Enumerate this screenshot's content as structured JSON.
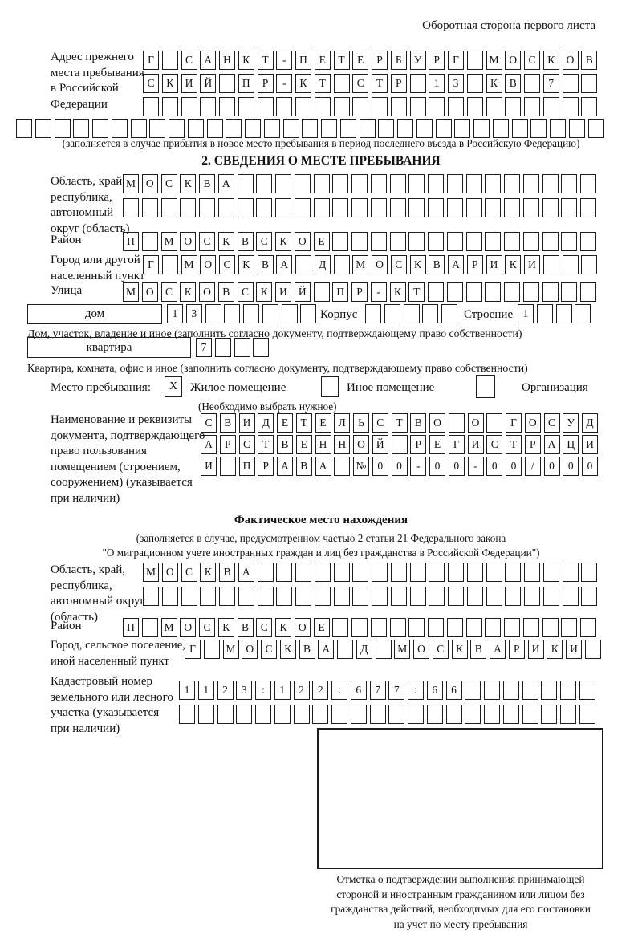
{
  "header": {
    "note": "Оборотная сторона первого листа"
  },
  "prev_address": {
    "label": "Адрес прежнего\nместа пребывания\nв Российской\nФедерации",
    "rows": [
      {
        "text": "Г САНКТ-ПЕТЕРБУРГ МОСКОВ",
        "len": 24
      },
      {
        "text": "СКИЙ ПР-КТ СТР 13 КВ 7",
        "len": 24
      },
      {
        "text": "",
        "len": 24
      },
      {
        "text": "",
        "len": 31
      }
    ],
    "note": "(заполняется в случае прибытия в новое место пребывания в период последнего въезда в Российскую Федерацию)"
  },
  "section2": {
    "title": "2. СВЕДЕНИЯ О МЕСТЕ ПРЕБЫВАНИЯ",
    "oblast": {
      "label": "Область, край,\nреспублика,\nавтономный\nокруг (область)",
      "rows": [
        {
          "text": "МОСКВА",
          "len": 25
        },
        {
          "text": "",
          "len": 25
        }
      ]
    },
    "rayon": {
      "label": "Район",
      "row": {
        "text": "П МОСКВСКОЕ",
        "len": 25
      }
    },
    "gorod": {
      "label": "Город или другой\nнаселенный пункт",
      "row": {
        "text": "Г МОСКВА Д МОСКВАРИКИ",
        "len": 24
      }
    },
    "ulitsa": {
      "label": "Улица",
      "row": {
        "text": "МОСКОВСКИЙ ПР-КТ",
        "len": 25
      }
    },
    "dom": {
      "box_label": "дом",
      "cells": {
        "text": "13",
        "len": 8
      },
      "korpus_label": "Корпус",
      "korpus_cells": {
        "text": "",
        "len": 5
      },
      "stroenie_label": "Строение",
      "stroenie_cells": {
        "text": "1",
        "len": 4
      },
      "note": "Дом, участок, владение и иное (заполнить согласно документу, подтверждающему право собственности)"
    },
    "kvartira": {
      "box_label": "квартира",
      "cells": {
        "text": "7",
        "len": 4
      },
      "note": "Квартира, комната, офис и иное (заполнить согласно документу, подтверждающему право собственности)"
    },
    "mesto": {
      "label": "Место пребывания:",
      "check1": "X",
      "opt1": "Жилое помещение",
      "check2": "",
      "opt2": "Иное помещение",
      "check3": "",
      "opt3": "Организация",
      "note": "(Необходимо выбрать нужное)"
    },
    "doc": {
      "label": "Наименование и реквизиты\nдокумента, подтверждающего\nправо пользования\nпомещением (строением,\nсооружением) (указывается\nпри наличии)",
      "rows": [
        {
          "text": "СВИДЕТЕЛЬСТВО О ГОСУД",
          "len": 21
        },
        {
          "text": "АРСТВЕННОЙ РЕГИСТРАЦИ",
          "len": 21
        },
        {
          "text": "И ПРАВА №00-00-00/000",
          "len": 21
        }
      ]
    }
  },
  "fact": {
    "title": "Фактическое место нахождения",
    "note1": "(заполняется в случае, предусмотренном частью 2 статьи 21 Федерального закона",
    "note2": "\"О миграционном учете иностранных граждан и лиц без гражданства в Российской Федерации\")",
    "oblast": {
      "label": "Область, край,\nреспублика,\nавтономный округ\n(область)",
      "rows": [
        {
          "text": "МОСКВА",
          "len": 24
        },
        {
          "text": "",
          "len": 24
        }
      ]
    },
    "rayon": {
      "label": "Район",
      "row": {
        "text": "П МОСКВСКОЕ",
        "len": 25
      }
    },
    "gorod": {
      "label": "Город, сельское поселение,\nиной населенный пункт",
      "row": {
        "text": "Г МОСКВА Д МОСКВАРИКИ",
        "len": 22
      }
    },
    "kadastr": {
      "label": "Кадастровый номер\nземельного или лесного\nучастка (указывается\nпри наличии)",
      "rows": [
        {
          "text": "1123:122:677:66",
          "len": 22
        },
        {
          "text": "",
          "len": 22
        }
      ]
    },
    "stamp_caption": "Отметка о подтверждении выполнения принимающей\nстороной и иностранным гражданином или лицом без\nгражданства действий, необходимых для его постановки\nна учет по месту пребывания"
  }
}
